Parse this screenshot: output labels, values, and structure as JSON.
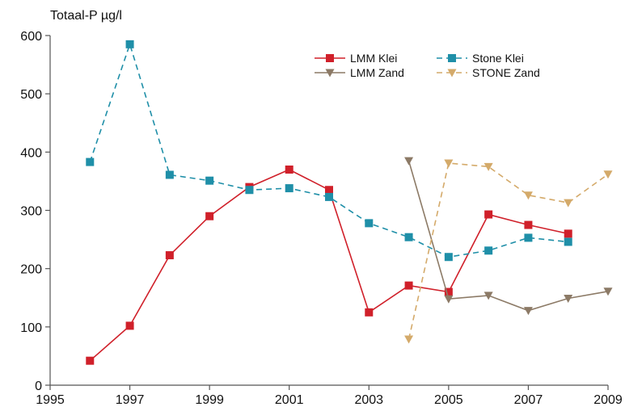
{
  "chart_data": {
    "type": "line",
    "title": "",
    "xlabel": "",
    "ylabel": "Totaal-P µg/l",
    "xlim": [
      1995,
      2009
    ],
    "ylim": [
      0,
      600
    ],
    "x_ticks": [
      1995,
      1997,
      1999,
      2001,
      2003,
      2005,
      2007,
      2009
    ],
    "y_ticks": [
      0,
      100,
      200,
      300,
      400,
      500,
      600
    ],
    "grid": false,
    "legend_placement": "top-right",
    "series": [
      {
        "name": "LMM Klei",
        "color": "#d0202a",
        "line_style": "solid",
        "marker": "square",
        "x": [
          1996,
          1997,
          1998,
          1999,
          2000,
          2001,
          2002,
          2003,
          2004,
          2005,
          2006,
          2007,
          2008
        ],
        "values": [
          42,
          102,
          223,
          290,
          340,
          370,
          335,
          125,
          171,
          160,
          293,
          275,
          260
        ]
      },
      {
        "name": "Stone Klei",
        "color": "#1f8fa8",
        "line_style": "dashed",
        "marker": "square",
        "x": [
          1996,
          1997,
          1998,
          1999,
          2000,
          2001,
          2002,
          2003,
          2004,
          2005,
          2006,
          2007,
          2008
        ],
        "values": [
          383,
          585,
          361,
          351,
          335,
          338,
          323,
          278,
          254,
          220,
          231,
          253,
          246
        ]
      },
      {
        "name": "LMM Zand",
        "color": "#8c7a66",
        "line_style": "solid",
        "marker": "triangle-down",
        "x": [
          2004,
          2005,
          2006,
          2007,
          2008,
          2009
        ],
        "values": [
          385,
          148,
          154,
          128,
          149,
          161
        ]
      },
      {
        "name": "STONE Zand",
        "color": "#d4aa6a",
        "line_style": "dashed",
        "marker": "triangle-down",
        "x": [
          2004,
          2005,
          2006,
          2007,
          2008,
          2009
        ],
        "values": [
          79,
          381,
          375,
          326,
          313,
          362
        ]
      }
    ],
    "legend": [
      {
        "series": "LMM Klei"
      },
      {
        "series": "Stone Klei"
      },
      {
        "series": "LMM Zand"
      },
      {
        "series": "STONE Zand"
      }
    ]
  }
}
